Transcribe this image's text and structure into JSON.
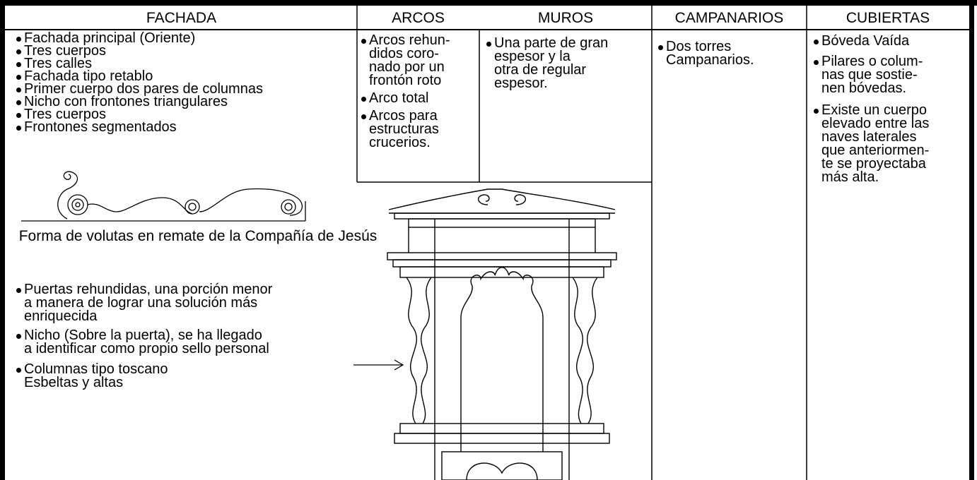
{
  "header_row": [
    "FACHADA",
    "ARCOS",
    "MUROS",
    "CAMPANARIOS",
    "CUBIERTAS"
  ],
  "fachada": {
    "items": [
      [
        "Fachada principal (Oriente)"
      ],
      [
        "Tres cuerpos"
      ],
      [
        "Tres calles"
      ],
      [
        "Fachada tipo retablo"
      ],
      [
        "Primer cuerpo dos pares de columnas"
      ],
      [
        "Nicho con frontones triangulares"
      ],
      [
        "Tres cuerpos"
      ],
      [
        "Frontones segmentados"
      ]
    ],
    "volute_caption": "Forma de volutas en remate de la Compañía de Jesús",
    "notes": [
      [
        "Puertas rehundidas, una porción menor",
        "a manera de lograr una solución más",
        "enriquecida"
      ],
      [
        "Nicho (Sobre la puerta), se ha llegado",
        "a identificar como propio sello personal"
      ],
      [
        "Columnas tipo toscano",
        "Esbeltas y altas"
      ]
    ]
  },
  "arcos": [
    [
      "Arcos rehun-",
      "didos coro-",
      "nado por un",
      "frontón roto"
    ],
    [
      "Arco total"
    ],
    [
      "Arcos para",
      "estructuras",
      "crucerios."
    ]
  ],
  "muros": [
    [
      "Una parte de gran",
      "espesor y la",
      "otra de regular",
      "espesor."
    ]
  ],
  "campanarios": [
    [
      "Dos torres",
      "Campanarios."
    ]
  ],
  "cubiertas": [
    [
      "Bóveda Vaída"
    ],
    [
      "Pilares o colum-",
      "nas que sostie-",
      "nen bóvedas."
    ],
    [
      "Existe un cuerpo",
      "elevado entre las",
      "naves laterales",
      "que anteriormen-",
      "te se proyectaba",
      "más alta."
    ]
  ]
}
